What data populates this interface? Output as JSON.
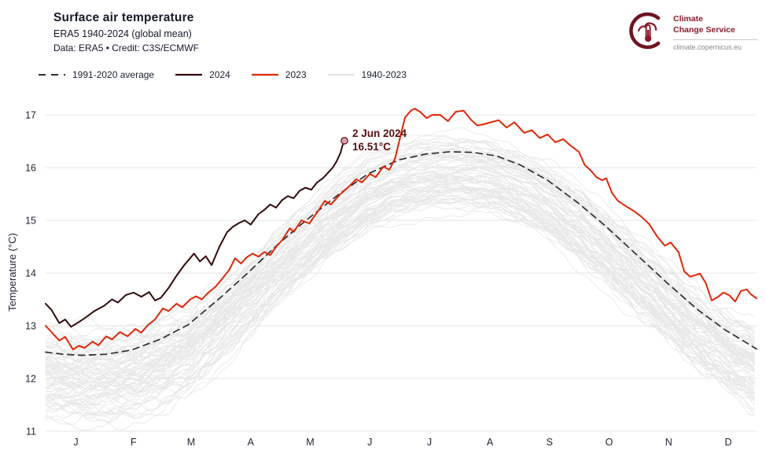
{
  "header": {
    "title": "Surface air temperature",
    "subtitle": "ERA5 1940-2024 (global mean)",
    "credit": "Data: ERA5 • Credit: C3S/ECMWF"
  },
  "logo": {
    "line1": "Climate",
    "line2": "Change Service",
    "url": "climate.copernicus.eu",
    "color": "#8c1d28"
  },
  "legend": [
    {
      "label": "1991-2020 average",
      "color": "#2f2f2f",
      "style": "dashed"
    },
    {
      "label": "2024",
      "color": "#330a0a",
      "style": "solid"
    },
    {
      "label": "2023",
      "color": "#e22708",
      "style": "solid"
    },
    {
      "label": "1940-2023",
      "color": "#e3e3e3",
      "style": "solid"
    }
  ],
  "chart_data": {
    "type": "line",
    "title": "Surface air temperature",
    "ylabel": "Temperature (°C)",
    "ylim": [
      11,
      17
    ],
    "yticks": [
      11,
      12,
      13,
      14,
      15,
      16,
      17
    ],
    "x_unit": "day_of_year",
    "xlim": [
      1,
      365
    ],
    "xtick_labels": [
      "J",
      "F",
      "M",
      "A",
      "M",
      "J",
      "J",
      "A",
      "S",
      "O",
      "N",
      "D"
    ],
    "grid": "horizontal",
    "legend_position": "top",
    "annotation": {
      "date": "2 Jun 2024",
      "value_label": "16.51°C",
      "day": 154,
      "value": 16.51,
      "text_color": "#5a1010",
      "marker_fill": "#dba3a9",
      "marker_stroke": "#5a1010"
    },
    "series": [
      {
        "name": "1991-2020 average",
        "style": "dashed",
        "color": "#2f2f2f",
        "points": [
          [
            1,
            12.5
          ],
          [
            10,
            12.46
          ],
          [
            20,
            12.44
          ],
          [
            32,
            12.46
          ],
          [
            45,
            12.54
          ],
          [
            60,
            12.75
          ],
          [
            74,
            13.02
          ],
          [
            91,
            13.55
          ],
          [
            105,
            14.02
          ],
          [
            121,
            14.58
          ],
          [
            135,
            15.02
          ],
          [
            152,
            15.52
          ],
          [
            166,
            15.88
          ],
          [
            182,
            16.15
          ],
          [
            196,
            16.26
          ],
          [
            208,
            16.3
          ],
          [
            220,
            16.29
          ],
          [
            232,
            16.22
          ],
          [
            244,
            16.05
          ],
          [
            258,
            15.76
          ],
          [
            274,
            15.32
          ],
          [
            288,
            14.88
          ],
          [
            305,
            14.3
          ],
          [
            319,
            13.82
          ],
          [
            335,
            13.3
          ],
          [
            349,
            12.92
          ],
          [
            358,
            12.72
          ],
          [
            365,
            12.56
          ]
        ]
      },
      {
        "name": "2023",
        "style": "solid",
        "color": "#e22708",
        "points": [
          [
            1,
            13.0
          ],
          [
            4,
            12.88
          ],
          [
            8,
            12.72
          ],
          [
            11,
            12.79
          ],
          [
            15,
            12.55
          ],
          [
            18,
            12.62
          ],
          [
            21,
            12.58
          ],
          [
            25,
            12.7
          ],
          [
            28,
            12.63
          ],
          [
            32,
            12.8
          ],
          [
            35,
            12.74
          ],
          [
            39,
            12.88
          ],
          [
            43,
            12.8
          ],
          [
            47,
            12.94
          ],
          [
            50,
            12.87
          ],
          [
            53,
            13.0
          ],
          [
            57,
            13.12
          ],
          [
            61,
            13.33
          ],
          [
            64,
            13.28
          ],
          [
            68,
            13.42
          ],
          [
            71,
            13.35
          ],
          [
            75,
            13.5
          ],
          [
            78,
            13.56
          ],
          [
            81,
            13.5
          ],
          [
            84,
            13.62
          ],
          [
            88,
            13.74
          ],
          [
            92,
            13.92
          ],
          [
            95,
            14.06
          ],
          [
            98,
            14.28
          ],
          [
            101,
            14.18
          ],
          [
            104,
            14.3
          ],
          [
            107,
            14.37
          ],
          [
            110,
            14.31
          ],
          [
            113,
            14.4
          ],
          [
            116,
            14.34
          ],
          [
            119,
            14.5
          ],
          [
            122,
            14.62
          ],
          [
            126,
            14.85
          ],
          [
            128,
            14.78
          ],
          [
            132,
            15.0
          ],
          [
            136,
            14.94
          ],
          [
            140,
            15.15
          ],
          [
            144,
            15.37
          ],
          [
            147,
            15.3
          ],
          [
            152,
            15.5
          ],
          [
            156,
            15.63
          ],
          [
            160,
            15.78
          ],
          [
            163,
            15.72
          ],
          [
            167,
            15.88
          ],
          [
            170,
            15.82
          ],
          [
            174,
            16.02
          ],
          [
            177,
            15.96
          ],
          [
            180,
            16.18
          ],
          [
            183,
            16.65
          ],
          [
            185,
            16.95
          ],
          [
            188,
            17.08
          ],
          [
            190,
            17.12
          ],
          [
            193,
            17.05
          ],
          [
            196,
            16.94
          ],
          [
            199,
            17.0
          ],
          [
            203,
            17.0
          ],
          [
            207,
            16.88
          ],
          [
            211,
            17.06
          ],
          [
            215,
            17.08
          ],
          [
            219,
            16.9
          ],
          [
            222,
            16.8
          ],
          [
            225,
            16.82
          ],
          [
            229,
            16.86
          ],
          [
            233,
            16.9
          ],
          [
            237,
            16.76
          ],
          [
            241,
            16.86
          ],
          [
            246,
            16.66
          ],
          [
            250,
            16.71
          ],
          [
            254,
            16.56
          ],
          [
            258,
            16.63
          ],
          [
            262,
            16.48
          ],
          [
            266,
            16.54
          ],
          [
            270,
            16.41
          ],
          [
            274,
            16.3
          ],
          [
            277,
            16.05
          ],
          [
            280,
            15.95
          ],
          [
            283,
            15.82
          ],
          [
            286,
            15.76
          ],
          [
            288,
            15.8
          ],
          [
            291,
            15.52
          ],
          [
            294,
            15.37
          ],
          [
            298,
            15.27
          ],
          [
            302,
            15.18
          ],
          [
            306,
            15.07
          ],
          [
            310,
            14.93
          ],
          [
            314,
            14.7
          ],
          [
            318,
            14.52
          ],
          [
            321,
            14.58
          ],
          [
            325,
            14.4
          ],
          [
            328,
            14.03
          ],
          [
            331,
            13.93
          ],
          [
            336,
            13.99
          ],
          [
            339,
            13.81
          ],
          [
            342,
            13.48
          ],
          [
            345,
            13.54
          ],
          [
            348,
            13.63
          ],
          [
            351,
            13.58
          ],
          [
            354,
            13.46
          ],
          [
            357,
            13.66
          ],
          [
            360,
            13.69
          ],
          [
            362,
            13.6
          ],
          [
            365,
            13.52
          ]
        ]
      },
      {
        "name": "2024",
        "style": "solid",
        "color": "#330a0a",
        "points": [
          [
            1,
            13.42
          ],
          [
            4,
            13.3
          ],
          [
            8,
            13.05
          ],
          [
            11,
            13.12
          ],
          [
            14,
            12.98
          ],
          [
            18,
            13.07
          ],
          [
            22,
            13.17
          ],
          [
            26,
            13.28
          ],
          [
            31,
            13.38
          ],
          [
            35,
            13.5
          ],
          [
            38,
            13.44
          ],
          [
            42,
            13.58
          ],
          [
            46,
            13.63
          ],
          [
            50,
            13.55
          ],
          [
            54,
            13.64
          ],
          [
            57,
            13.48
          ],
          [
            60,
            13.53
          ],
          [
            64,
            13.72
          ],
          [
            68,
            13.95
          ],
          [
            72,
            14.15
          ],
          [
            77,
            14.37
          ],
          [
            80,
            14.22
          ],
          [
            83,
            14.32
          ],
          [
            86,
            14.15
          ],
          [
            90,
            14.5
          ],
          [
            94,
            14.78
          ],
          [
            97,
            14.88
          ],
          [
            100,
            14.95
          ],
          [
            103,
            15.0
          ],
          [
            106,
            14.92
          ],
          [
            110,
            15.12
          ],
          [
            113,
            15.2
          ],
          [
            116,
            15.3
          ],
          [
            119,
            15.24
          ],
          [
            122,
            15.38
          ],
          [
            125,
            15.46
          ],
          [
            128,
            15.42
          ],
          [
            131,
            15.56
          ],
          [
            134,
            15.62
          ],
          [
            137,
            15.58
          ],
          [
            140,
            15.72
          ],
          [
            143,
            15.8
          ],
          [
            146,
            15.92
          ],
          [
            148,
            16.0
          ],
          [
            150,
            16.12
          ],
          [
            152,
            16.28
          ],
          [
            153,
            16.42
          ],
          [
            154,
            16.51
          ]
        ]
      }
    ],
    "ensemble": {
      "name": "1940-2023",
      "years": 84,
      "color": "#e8e8e8",
      "offset_range_rel_avg": [
        -0.88,
        0.3
      ],
      "winter_extra_spread": 0.35,
      "approx_band_january": [
        11.5,
        13.3
      ],
      "approx_band_july": [
        15.2,
        16.65
      ]
    }
  }
}
